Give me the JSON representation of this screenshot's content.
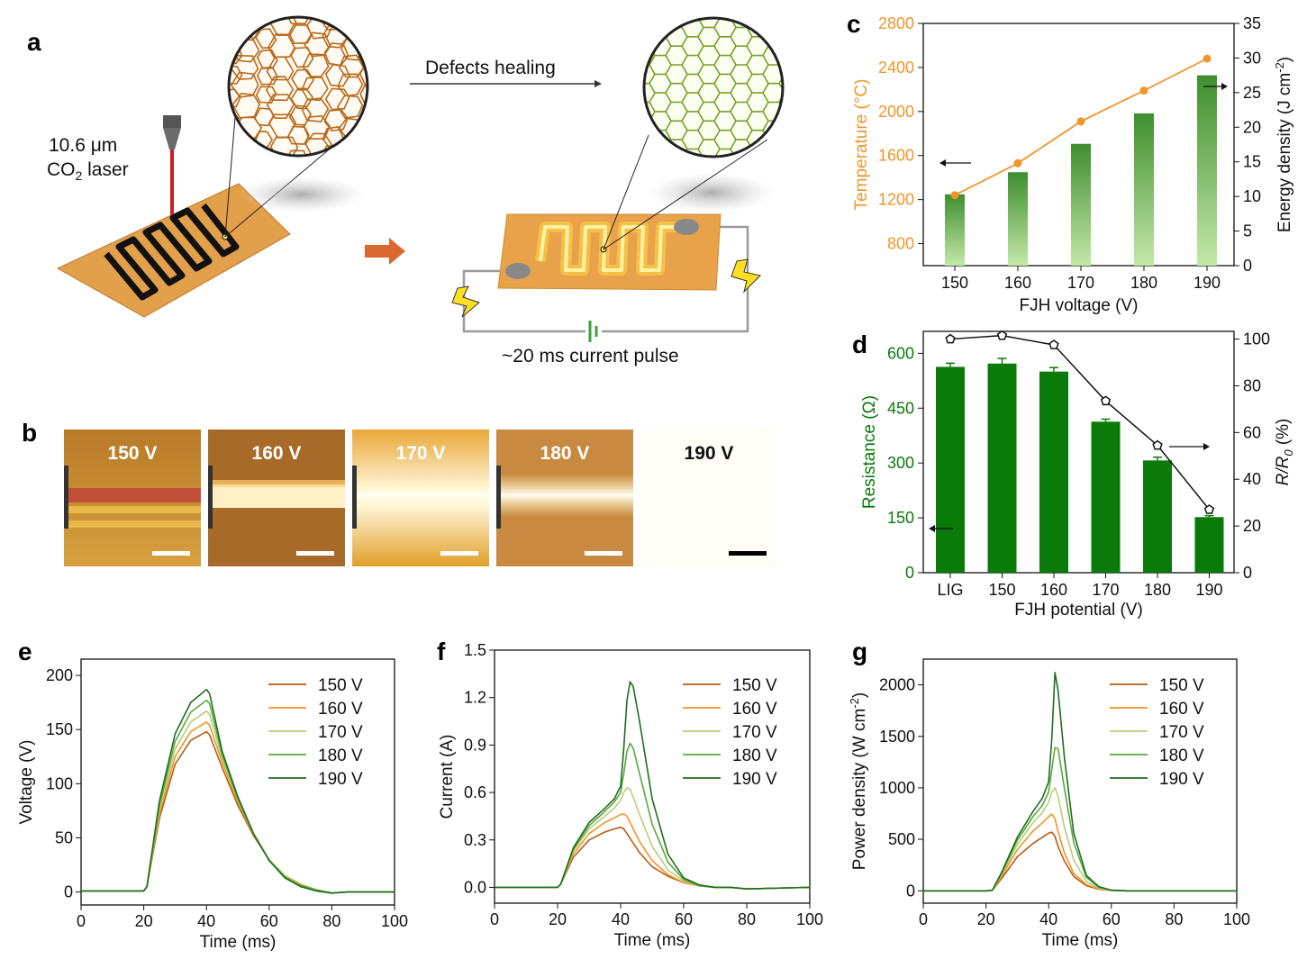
{
  "panels": {
    "a": {
      "label": "a",
      "laser_line1": "10.6 μm",
      "laser_line2_prefix": "CO",
      "laser_line2_sub": "2",
      "laser_line2_suffix": " laser",
      "arrow_text": "Defects healing",
      "pulse_text": "~20 ms current pulse"
    },
    "b": {
      "label": "b",
      "images": [
        {
          "label": "150 V",
          "bar_color": "#ffffff"
        },
        {
          "label": "160 V",
          "bar_color": "#ffffff"
        },
        {
          "label": "170 V",
          "bar_color": "#ffffff"
        },
        {
          "label": "180 V",
          "bar_color": "#ffffff"
        },
        {
          "label": "190 V",
          "bar_color": "#000000"
        }
      ]
    },
    "c": {
      "label": "c"
    },
    "d": {
      "label": "d"
    },
    "e": {
      "label": "e"
    },
    "f": {
      "label": "f"
    },
    "g": {
      "label": "g"
    }
  },
  "colors": {
    "orange": "#f0952a",
    "green_dark": "#0a7a0a",
    "series": [
      "#b85c12",
      "#f0952a",
      "#b5d07a",
      "#5aa83e",
      "#1e6e1e"
    ]
  },
  "chart_data": [
    {
      "id": "c",
      "type": "bar",
      "xlabel": "FJH voltage (V)",
      "categories": [
        "150",
        "160",
        "170",
        "180",
        "190"
      ],
      "series": [
        {
          "name": "Temperature",
          "type": "line",
          "axis": "left",
          "values": [
            1240,
            1530,
            1910,
            2190,
            2480
          ]
        },
        {
          "name": "Energy density",
          "type": "bar",
          "axis": "right",
          "values": [
            10.3,
            13.5,
            17.6,
            22.0,
            27.5
          ]
        }
      ],
      "ylabel_left": "Temperature (°C)",
      "ylabel_right_prefix": "Energy density (J cm",
      "ylabel_right_sup": "-2",
      "ylabel_right_suffix": ")",
      "ylim_left": [
        600,
        2800
      ],
      "yticks_left": [
        "800",
        "1200",
        "1600",
        "2000",
        "2400",
        "2800"
      ],
      "ylim_right": [
        0,
        35
      ],
      "yticks_right": [
        "0",
        "5",
        "10",
        "15",
        "20",
        "25",
        "30",
        "35"
      ]
    },
    {
      "id": "d",
      "type": "bar",
      "xlabel": "FJH potential (V)",
      "categories": [
        "LIG",
        "150",
        "160",
        "170",
        "180",
        "190"
      ],
      "series": [
        {
          "name": "Resistance",
          "type": "bar",
          "axis": "left",
          "values": [
            563,
            572,
            550,
            413,
            307,
            152
          ],
          "errors": [
            10,
            14,
            11,
            7,
            9,
            4
          ]
        },
        {
          "name": "R/R0",
          "type": "line",
          "axis": "right",
          "values": [
            100,
            101.5,
            97.5,
            73.5,
            54.5,
            27
          ]
        }
      ],
      "ylabel_left": "Resistance (Ω)",
      "ylabel_right_main": "R/R",
      "ylabel_right_sub": "0",
      "ylabel_right_suffix": " (%)",
      "ylim_left": [
        0,
        660
      ],
      "yticks_left": [
        "0",
        "150",
        "300",
        "450",
        "600"
      ],
      "ylim_right": [
        0,
        103.3
      ],
      "yticks_right": [
        "0",
        "20",
        "40",
        "60",
        "80",
        "100"
      ]
    },
    {
      "id": "e",
      "type": "line",
      "xlabel": "Time (ms)",
      "ylabel": "Voltage (V)",
      "xlim": [
        0,
        100
      ],
      "xticks": [
        "0",
        "20",
        "40",
        "60",
        "80",
        "100"
      ],
      "ylim": [
        -12,
        215
      ],
      "yticks": [
        "0",
        "50",
        "100",
        "150",
        "200"
      ],
      "x": [
        0,
        20,
        21,
        25,
        30,
        35,
        40,
        41,
        45,
        50,
        55,
        60,
        65,
        70,
        75,
        80,
        85,
        100
      ],
      "series": [
        {
          "name": "150 V",
          "values": [
            1,
            1,
            5,
            68,
            118,
            140,
            148,
            145,
            115,
            80,
            52,
            30,
            15,
            7,
            2,
            -1,
            0,
            0
          ]
        },
        {
          "name": "160 V",
          "values": [
            1,
            1,
            5,
            72,
            125,
            148,
            157,
            154,
            120,
            83,
            53,
            30,
            15,
            7,
            2,
            -1,
            0,
            0
          ]
        },
        {
          "name": "170 V",
          "values": [
            1,
            1,
            5,
            76,
            132,
            157,
            167,
            164,
            124,
            85,
            54,
            30,
            15,
            6,
            2,
            -1,
            0,
            0
          ]
        },
        {
          "name": "180 V",
          "values": [
            1,
            1,
            5,
            80,
            139,
            166,
            177,
            174,
            127,
            86,
            54,
            29,
            14,
            6,
            2,
            -1,
            0,
            0
          ]
        },
        {
          "name": "190 V",
          "values": [
            1,
            1,
            5,
            84,
            146,
            175,
            187,
            183,
            130,
            88,
            54,
            29,
            13,
            5,
            1,
            -1,
            0,
            0
          ]
        }
      ]
    },
    {
      "id": "f",
      "type": "line",
      "xlabel": "Time (ms)",
      "ylabel": "Current (A)",
      "xlim": [
        0,
        100
      ],
      "xticks": [
        "0",
        "20",
        "40",
        "60",
        "80",
        "100"
      ],
      "ylim": [
        -0.1,
        1.5
      ],
      "yticks": [
        "0.0",
        "0.3",
        "0.6",
        "0.9",
        "1.2",
        "1.5"
      ],
      "x": [
        0,
        20,
        21,
        25,
        30,
        35,
        38,
        40,
        41,
        42,
        43,
        44,
        46,
        50,
        55,
        60,
        65,
        70,
        75,
        80,
        100
      ],
      "series": [
        {
          "name": "150 V",
          "values": [
            0,
            0,
            0.02,
            0.19,
            0.3,
            0.35,
            0.37,
            0.38,
            0.37,
            0.34,
            0.31,
            0.28,
            0.22,
            0.13,
            0.07,
            0.03,
            0.01,
            0,
            0,
            -0.01,
            0
          ]
        },
        {
          "name": "160 V",
          "values": [
            0,
            0,
            0.02,
            0.21,
            0.34,
            0.41,
            0.44,
            0.46,
            0.465,
            0.45,
            0.41,
            0.37,
            0.29,
            0.17,
            0.08,
            0.03,
            0.01,
            0,
            0,
            -0.01,
            0
          ]
        },
        {
          "name": "170 V",
          "values": [
            0,
            0,
            0.02,
            0.23,
            0.37,
            0.45,
            0.5,
            0.55,
            0.6,
            0.63,
            0.62,
            0.57,
            0.46,
            0.26,
            0.11,
            0.04,
            0.01,
            0,
            0,
            -0.01,
            0
          ]
        },
        {
          "name": "180 V",
          "values": [
            0,
            0,
            0.02,
            0.24,
            0.39,
            0.48,
            0.54,
            0.6,
            0.72,
            0.86,
            0.91,
            0.88,
            0.72,
            0.4,
            0.16,
            0.05,
            0.01,
            0,
            0,
            -0.01,
            0
          ]
        },
        {
          "name": "190 V",
          "values": [
            0,
            0,
            0.02,
            0.25,
            0.41,
            0.5,
            0.56,
            0.64,
            0.88,
            1.18,
            1.3,
            1.27,
            1.05,
            0.56,
            0.21,
            0.06,
            0.015,
            0,
            0,
            -0.01,
            0
          ]
        }
      ]
    },
    {
      "id": "g",
      "type": "line",
      "xlabel": "Time (ms)",
      "ylabel_prefix": "Power density (W cm",
      "ylabel_sup": "-2",
      "ylabel_suffix": ")",
      "xlim": [
        0,
        100
      ],
      "xticks": [
        "0",
        "20",
        "40",
        "60",
        "80",
        "100"
      ],
      "ylim": [
        -120,
        2250
      ],
      "yticks": [
        "0",
        "500",
        "1000",
        "1500",
        "2000"
      ],
      "x": [
        0,
        20,
        22,
        25,
        30,
        35,
        38,
        40,
        41,
        42,
        43,
        45,
        48,
        52,
        56,
        60,
        65,
        100
      ],
      "series": [
        {
          "name": "150 V",
          "values": [
            0,
            0,
            5,
            120,
            330,
            460,
            520,
            560,
            570,
            530,
            430,
            290,
            140,
            50,
            15,
            4,
            0,
            0
          ]
        },
        {
          "name": "160 V",
          "values": [
            0,
            0,
            5,
            140,
            400,
            580,
            660,
            720,
            745,
            700,
            580,
            370,
            170,
            60,
            18,
            4,
            0,
            0
          ]
        },
        {
          "name": "170 V",
          "values": [
            0,
            0,
            5,
            160,
            450,
            660,
            760,
            860,
            960,
            1000,
            920,
            620,
            300,
            90,
            25,
            5,
            0,
            0
          ]
        },
        {
          "name": "180 V",
          "values": [
            0,
            0,
            5,
            170,
            490,
            720,
            830,
            960,
            1180,
            1390,
            1380,
            1000,
            470,
            130,
            35,
            6,
            0,
            0
          ]
        },
        {
          "name": "190 V",
          "values": [
            0,
            0,
            5,
            180,
            520,
            770,
            900,
            1060,
            1480,
            2120,
            1950,
            1300,
            560,
            150,
            40,
            6,
            0,
            0
          ]
        }
      ]
    }
  ]
}
